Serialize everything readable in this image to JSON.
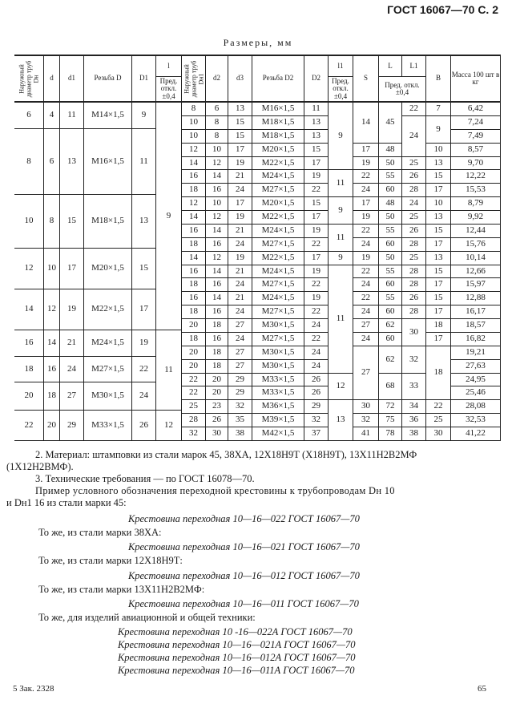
{
  "page_header": "ГОСТ 16067—70 С. 2",
  "table_title": "Размеры, мм",
  "table": {
    "headers": {
      "dn": "Наружный диаметр труб Dн",
      "d": "d",
      "d1": "d1",
      "thread_d": "Резьба D",
      "D1": "D1",
      "l": "l",
      "l_tol": "Пред. откл. ±0,4",
      "dn1": "Наружный диаметр труб Dн1",
      "d2": "d2",
      "d3": "d3",
      "thread_d2": "Резьба D2",
      "D2": "D2",
      "l1": "l1",
      "l1_tol": "Пред. откл. ±0,4",
      "S": "S",
      "L": "L",
      "L1": "L1",
      "L_tol": "Пред. откл. ±0,4",
      "B": "B",
      "mass": "Масса 100 шт в кг"
    },
    "left_groups": [
      [
        "6",
        "4",
        "11",
        "М14×1,5",
        "9"
      ],
      [
        "8",
        "6",
        "13",
        "М16×1,5",
        "11"
      ],
      [
        "10",
        "8",
        "15",
        "М18×1,5",
        "13"
      ],
      [
        "12",
        "10",
        "17",
        "М20×1,5",
        "15"
      ],
      [
        "14",
        "12",
        "19",
        "М22×1,5",
        "17"
      ],
      [
        "16",
        "14",
        "21",
        "М24×1,5",
        "19"
      ],
      [
        "18",
        "16",
        "24",
        "М27×1,5",
        "22"
      ],
      [
        "20",
        "18",
        "27",
        "М30×1,5",
        "24"
      ],
      [
        "22",
        "20",
        "29",
        "М33×1,5",
        "26"
      ]
    ],
    "l_values": [
      {
        "v": "9",
        "groups": 5
      },
      {
        "v": "11",
        "groups": 3
      },
      {
        "v": "12",
        "groups": 1
      }
    ],
    "right_rows": [
      [
        "8",
        "6",
        "13",
        "М16×1,5",
        "11",
        {
          "v": "9",
          "rs": 5
        },
        {
          "v": "14",
          "rs": 3
        },
        {
          "v": "45",
          "rs": 3
        },
        "22",
        "7",
        "6,42"
      ],
      [
        "10",
        "8",
        "15",
        "М18×1,5",
        "13",
        null,
        null,
        null,
        {
          "v": "24",
          "rs": 3
        },
        {
          "v": "9",
          "rs": 2
        },
        "7,24"
      ],
      [
        "10",
        "8",
        "15",
        "М18×1,5",
        "13",
        null,
        null,
        null,
        null,
        null,
        "7,49"
      ],
      [
        "12",
        "10",
        "17",
        "М20×1,5",
        "15",
        null,
        "17",
        "48",
        null,
        "10",
        "8,57"
      ],
      [
        "14",
        "12",
        "19",
        "М22×1,5",
        "17",
        null,
        "19",
        "50",
        "25",
        "13",
        "9,70"
      ],
      [
        "16",
        "14",
        "21",
        "М24×1,5",
        "19",
        {
          "v": "11",
          "rs": 2
        },
        "22",
        "55",
        "26",
        "15",
        "12,22"
      ],
      [
        "18",
        "16",
        "24",
        "М27×1,5",
        "22",
        null,
        "24",
        "60",
        "28",
        "17",
        "15,53"
      ],
      [
        "12",
        "10",
        "17",
        "М20×1,5",
        "15",
        {
          "v": "9",
          "rs": 2
        },
        "17",
        "48",
        "24",
        "10",
        "8,79"
      ],
      [
        "14",
        "12",
        "19",
        "М22×1,5",
        "17",
        null,
        "19",
        "50",
        "25",
        "13",
        "9,92"
      ],
      [
        "16",
        "14",
        "21",
        "М24×1,5",
        "19",
        {
          "v": "11",
          "rs": 2
        },
        "22",
        "55",
        "26",
        "15",
        "12,44"
      ],
      [
        "18",
        "16",
        "24",
        "М27×1,5",
        "22",
        null,
        "24",
        "60",
        "28",
        "17",
        "15,76"
      ],
      [
        "14",
        "12",
        "19",
        "М22×1,5",
        "17",
        "9",
        "19",
        "50",
        "25",
        "13",
        "10,14"
      ],
      [
        "16",
        "14",
        "21",
        "М24×1,5",
        "19",
        {
          "v": "11",
          "rs": 8
        },
        "22",
        "55",
        "28",
        "15",
        "12,66"
      ],
      [
        "18",
        "16",
        "24",
        "М27×1,5",
        "22",
        null,
        "24",
        "60",
        "28",
        "17",
        "15,97"
      ],
      [
        "16",
        "14",
        "21",
        "М24×1,5",
        "19",
        null,
        "22",
        "55",
        "26",
        "15",
        "12,88"
      ],
      [
        "18",
        "16",
        "24",
        "М27×1,5",
        "22",
        null,
        "24",
        "60",
        "28",
        "17",
        "16,17"
      ],
      [
        "20",
        "18",
        "27",
        "М30×1,5",
        "24",
        null,
        "27",
        "62",
        {
          "v": "30",
          "rs": 2
        },
        "18",
        "18,57"
      ],
      [
        "18",
        "16",
        "24",
        "М27×1,5",
        "22",
        null,
        "24",
        "60",
        null,
        "17",
        "16,82"
      ],
      [
        "20",
        "18",
        "27",
        "М30×1,5",
        "24",
        null,
        {
          "v": "27",
          "rs": 4
        },
        {
          "v": "62",
          "rs": 2
        },
        {
          "v": "32",
          "rs": 2
        },
        {
          "v": "18",
          "rs": 4
        },
        "19,21"
      ],
      [
        "20",
        "18",
        "27",
        "М30×1,5",
        "24",
        null,
        null,
        null,
        null,
        null,
        "27,63"
      ],
      [
        "22",
        "20",
        "29",
        "М33×1,5",
        "26",
        {
          "v": "12",
          "rs": 2
        },
        null,
        {
          "v": "68",
          "rs": 2
        },
        {
          "v": "33",
          "rs": 2
        },
        null,
        "24,95"
      ],
      [
        "22",
        "20",
        "29",
        "М33×1,5",
        "26",
        null,
        null,
        null,
        null,
        null,
        "25,46"
      ],
      [
        "25",
        "23",
        "32",
        "М36×1,5",
        "29",
        {
          "v": "13",
          "rs": 3
        },
        "30",
        "72",
        "34",
        "22",
        "28,08"
      ],
      [
        "28",
        "26",
        "35",
        "М39×1,5",
        "32",
        null,
        "32",
        "75",
        "36",
        "25",
        "32,53"
      ],
      [
        "32",
        "30",
        "38",
        "М42×1,5",
        "37",
        null,
        "41",
        "78",
        "38",
        "30",
        "41,22"
      ]
    ]
  },
  "notes": {
    "material_1": "2. Материал: штамповки из стали марок 45, 38ХА,   12Х18Н9Т   (Х18Н9Т),   13Х11Н2В2МФ",
    "material_2": "(1Х12Н2ВМФ).",
    "tech_req": "3. Технические требования — по ГОСТ 16078—70.",
    "example_1": "Пример условного обозначения переходной крестовины к трубопроводам Dн 10",
    "example_2": "и Dн1 16 из стали марки 45:",
    "ex_45": "Крестовина переходная 10—16—022 ГОСТ 16067—70",
    "same_38": "То же, из стали марки 38ХА:",
    "ex_38": "Крестовина переходная 10—16—021 ГОСТ 16067—70",
    "same_12": "То же, из стали марки 12Х18Н9Т:",
    "ex_12": "Крестовина переходная 10—16—012 ГОСТ 16067—70",
    "same_13": "То же, из стали марки 13Х11Н2В2МФ:",
    "ex_13": "Крестовина переходная 10—16—011 ГОСТ 16067—70",
    "same_avia": "То же, для изделий авиационной и общей техники:",
    "avia": [
      "Крестовина переходная 10 -16—022А ГОСТ 16067—70",
      "Крестовина переходная 10—16—021А ГОСТ 16067—70",
      "Крестовина переходная 10—16—012А ГОСТ 16067—70",
      "Крестовина переходная 10—16—011А ГОСТ 16067—70"
    ]
  },
  "footer": {
    "order": "5 Зак. 2328",
    "page_number": "65"
  }
}
